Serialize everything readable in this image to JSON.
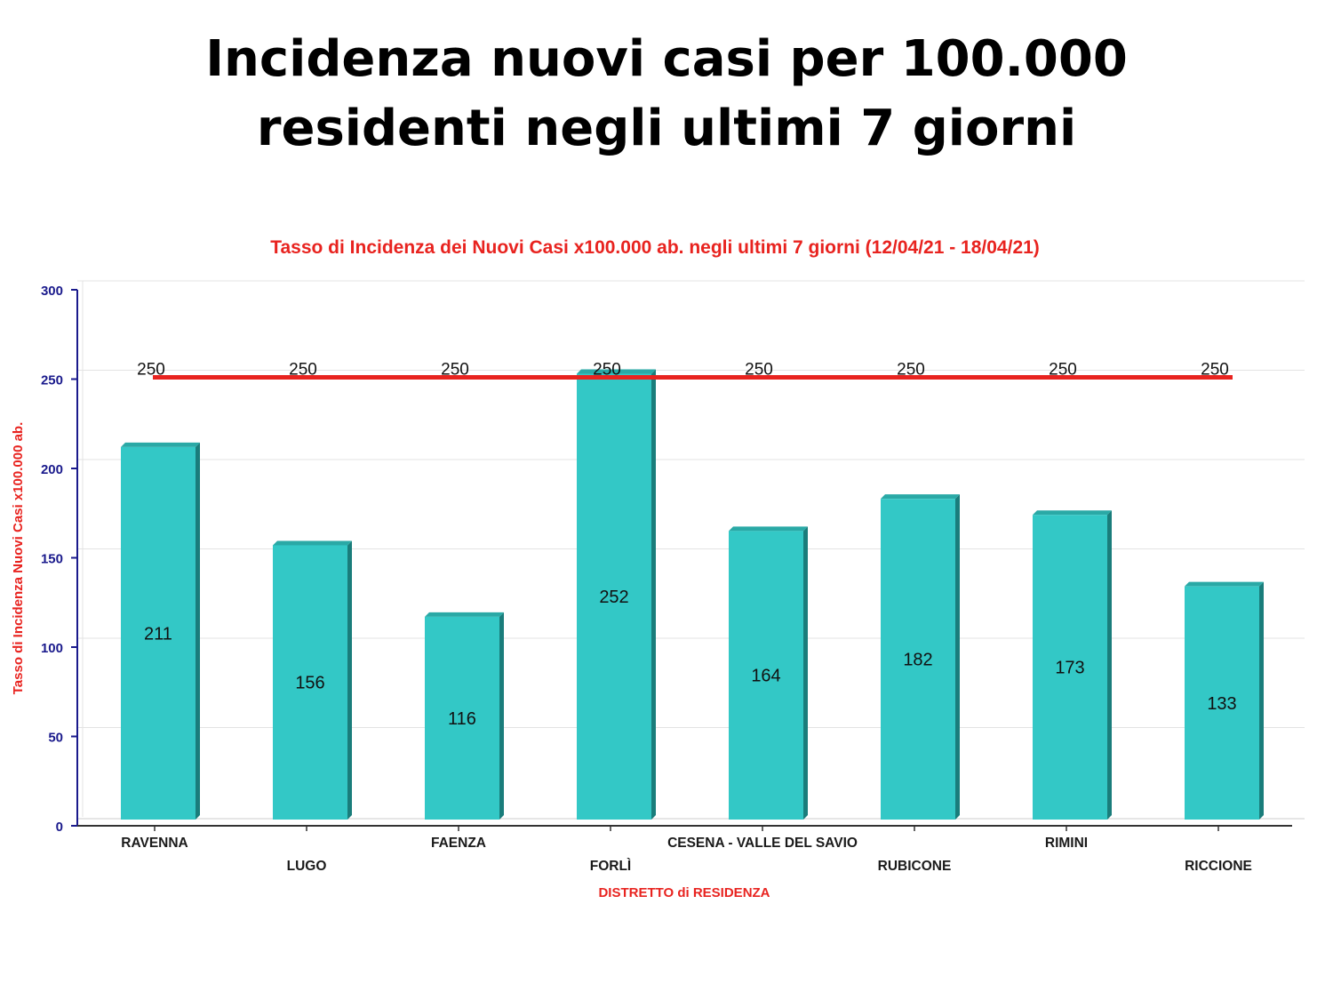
{
  "slide": {
    "title_line1": "Incidenza nuovi casi per 100.000",
    "title_line2": "residenti negli ultimi 7 giorni"
  },
  "chart_data": {
    "type": "bar",
    "title": "Tasso di Incidenza dei Nuovi Casi x100.000 ab. negli ultimi 7 giorni (12/04/21 - 18/04/21)",
    "xlabel": "DISTRETTO di RESIDENZA",
    "ylabel": "Tasso di Incidenza Nuovi Casi x100.000 ab.",
    "categories": [
      "RAVENNA",
      "LUGO",
      "FAENZA",
      "FORLÌ",
      "CESENA - VALLE DEL SAVIO",
      "RUBICONE",
      "RIMINI",
      "RICCIONE"
    ],
    "values": [
      211,
      156,
      116,
      252,
      164,
      182,
      173,
      133
    ],
    "data_labels": [
      "211",
      "156",
      "116",
      "252",
      "164",
      "182",
      "173",
      "133"
    ],
    "threshold": {
      "values": [
        250,
        250,
        250,
        250,
        250,
        250,
        250,
        250
      ],
      "labels": [
        "250",
        "250",
        "250",
        "250",
        "250",
        "250",
        "250",
        "250"
      ],
      "color": "#e8231f"
    },
    "ylim": [
      0,
      300
    ],
    "yticks": [
      0,
      50,
      100,
      150,
      200,
      250,
      300
    ],
    "ytick_labels": [
      "0",
      "50",
      "100",
      "150",
      "200",
      "250",
      "300"
    ],
    "grid": true,
    "colors": {
      "bar_front": "#33c8c6",
      "bar_top": "#2aa9a6",
      "bar_side": "#1a7d7b",
      "axis": "#1a1a8c",
      "title": "#e8231f"
    }
  }
}
